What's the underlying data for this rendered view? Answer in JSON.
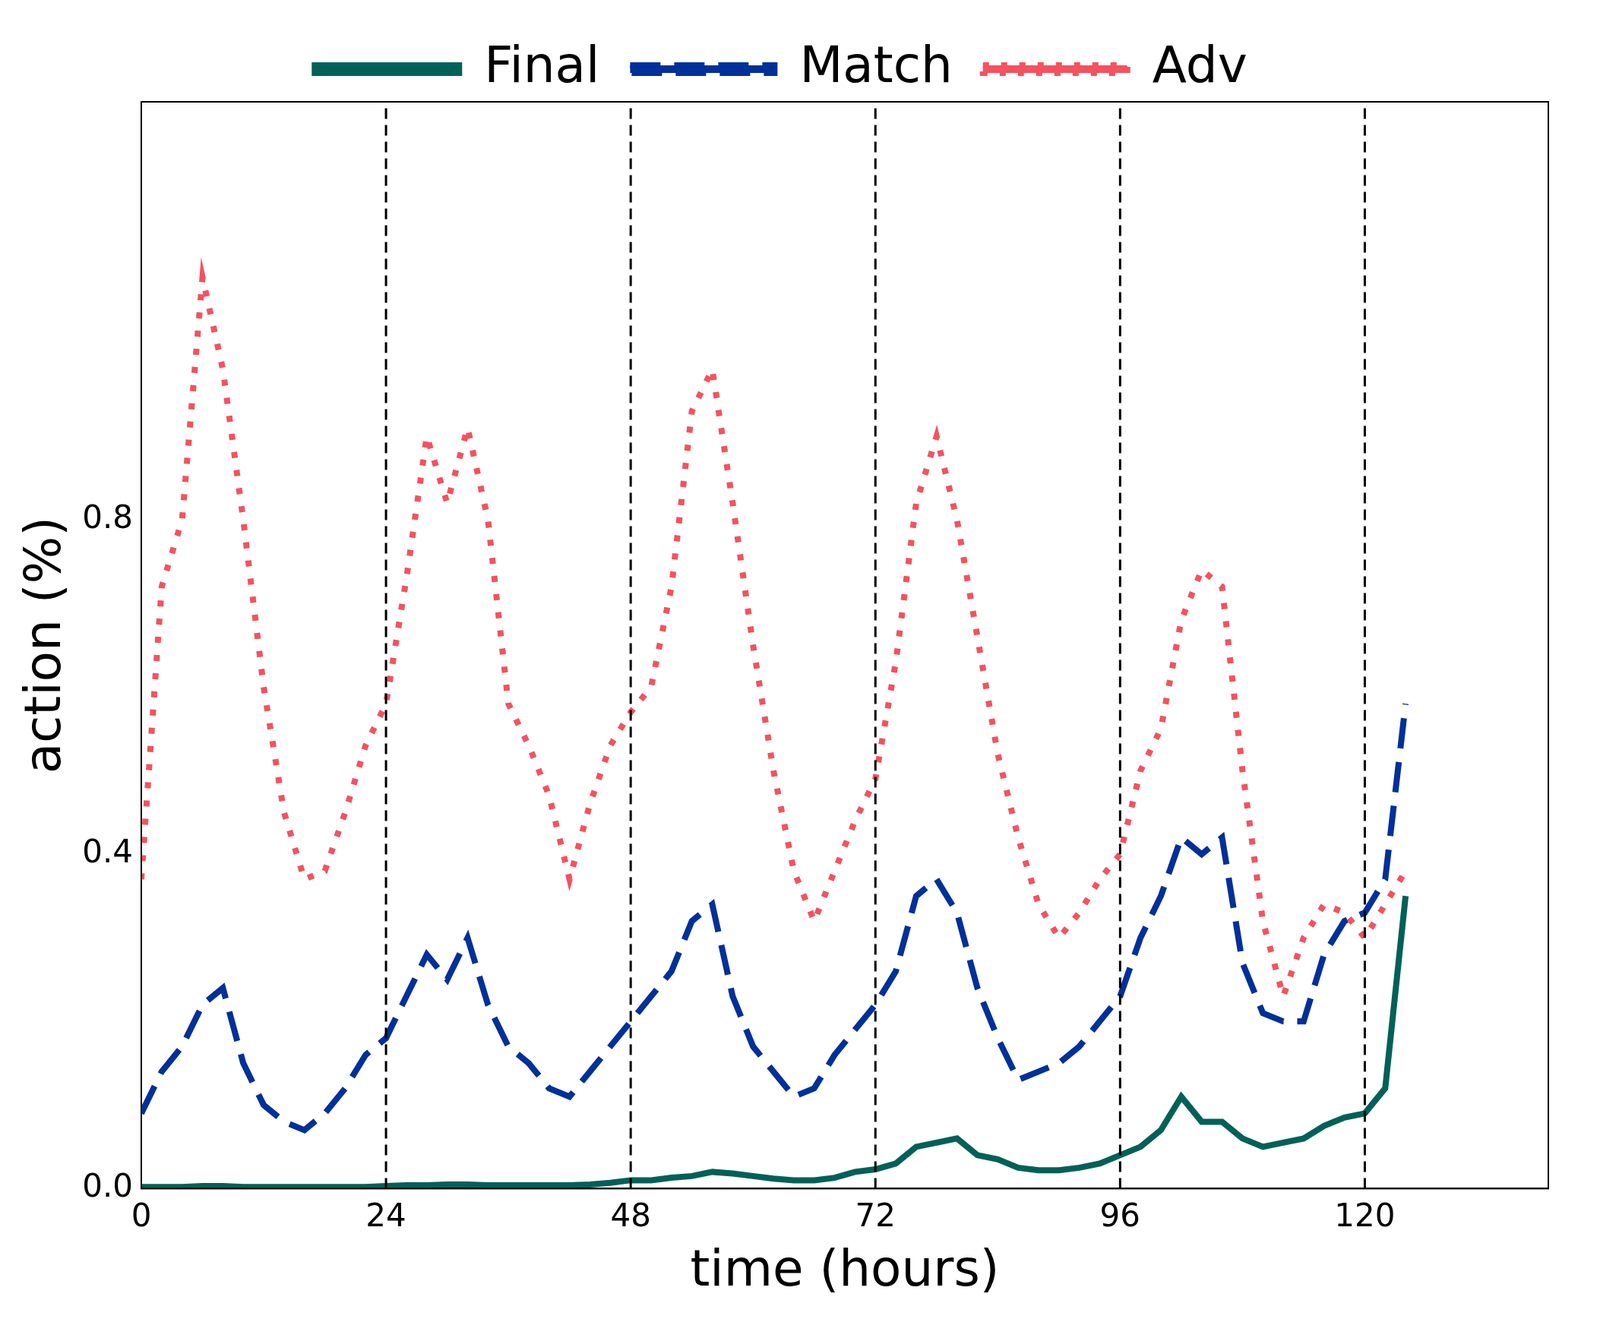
{
  "chart_data": {
    "type": "line",
    "x_label": "time (hours)",
    "y_label": "action (%)",
    "x": [
      0,
      2,
      4,
      6,
      8,
      10,
      12,
      14,
      16,
      18,
      20,
      22,
      24,
      26,
      28,
      30,
      32,
      34,
      36,
      38,
      40,
      42,
      44,
      46,
      48,
      50,
      52,
      54,
      56,
      58,
      60,
      62,
      64,
      66,
      68,
      70,
      72,
      74,
      76,
      78,
      80,
      82,
      84,
      86,
      88,
      90,
      92,
      94,
      96,
      98,
      100,
      102,
      104,
      106,
      108,
      110,
      112,
      114,
      116,
      118,
      120,
      122,
      124
    ],
    "series": [
      {
        "name": "Final",
        "color": "#006158",
        "line_style": "solid",
        "values": [
          0.002,
          0.002,
          0.002,
          0.003,
          0.003,
          0.002,
          0.002,
          0.002,
          0.002,
          0.002,
          0.002,
          0.002,
          0.003,
          0.004,
          0.004,
          0.005,
          0.005,
          0.004,
          0.004,
          0.004,
          0.004,
          0.004,
          0.005,
          0.007,
          0.01,
          0.01,
          0.013,
          0.015,
          0.02,
          0.018,
          0.015,
          0.012,
          0.01,
          0.01,
          0.013,
          0.02,
          0.023,
          0.03,
          0.05,
          0.055,
          0.06,
          0.04,
          0.035,
          0.025,
          0.022,
          0.022,
          0.025,
          0.03,
          0.04,
          0.05,
          0.07,
          0.11,
          0.08,
          0.08,
          0.06,
          0.05,
          0.055,
          0.06,
          0.075,
          0.085,
          0.09,
          0.12,
          0.35
        ]
      },
      {
        "name": "Match",
        "color": "#00309a",
        "line_style": "dashed",
        "values": [
          0.09,
          0.14,
          0.17,
          0.22,
          0.24,
          0.15,
          0.1,
          0.08,
          0.07,
          0.09,
          0.12,
          0.16,
          0.18,
          0.23,
          0.28,
          0.25,
          0.3,
          0.22,
          0.17,
          0.15,
          0.12,
          0.11,
          0.14,
          0.17,
          0.2,
          0.23,
          0.26,
          0.32,
          0.34,
          0.23,
          0.17,
          0.14,
          0.11,
          0.12,
          0.16,
          0.19,
          0.22,
          0.26,
          0.35,
          0.37,
          0.33,
          0.24,
          0.18,
          0.13,
          0.14,
          0.15,
          0.17,
          0.2,
          0.23,
          0.3,
          0.35,
          0.42,
          0.4,
          0.42,
          0.27,
          0.21,
          0.2,
          0.2,
          0.28,
          0.32,
          0.33,
          0.37,
          0.58
        ]
      },
      {
        "name": "Adv",
        "color": "#f5515f",
        "line_style": "dotted",
        "values": [
          0.37,
          0.72,
          0.8,
          1.09,
          0.98,
          0.8,
          0.6,
          0.45,
          0.37,
          0.38,
          0.45,
          0.53,
          0.58,
          0.73,
          0.9,
          0.82,
          0.91,
          0.8,
          0.58,
          0.53,
          0.47,
          0.37,
          0.46,
          0.53,
          0.57,
          0.6,
          0.72,
          0.93,
          0.98,
          0.82,
          0.65,
          0.5,
          0.38,
          0.32,
          0.38,
          0.44,
          0.49,
          0.63,
          0.82,
          0.9,
          0.8,
          0.66,
          0.52,
          0.42,
          0.34,
          0.3,
          0.33,
          0.37,
          0.4,
          0.5,
          0.55,
          0.68,
          0.74,
          0.72,
          0.5,
          0.32,
          0.23,
          0.3,
          0.34,
          0.33,
          0.3,
          0.34,
          0.38
        ]
      }
    ],
    "xlim": [
      0,
      138
    ],
    "xticks": [
      0,
      24,
      48,
      72,
      96,
      120
    ],
    "ylim": [
      0,
      1.3
    ],
    "yticks": [
      {
        "value": 0,
        "label": "0.0"
      },
      0.4,
      0.8
    ],
    "legend": "top",
    "grid": false
  }
}
